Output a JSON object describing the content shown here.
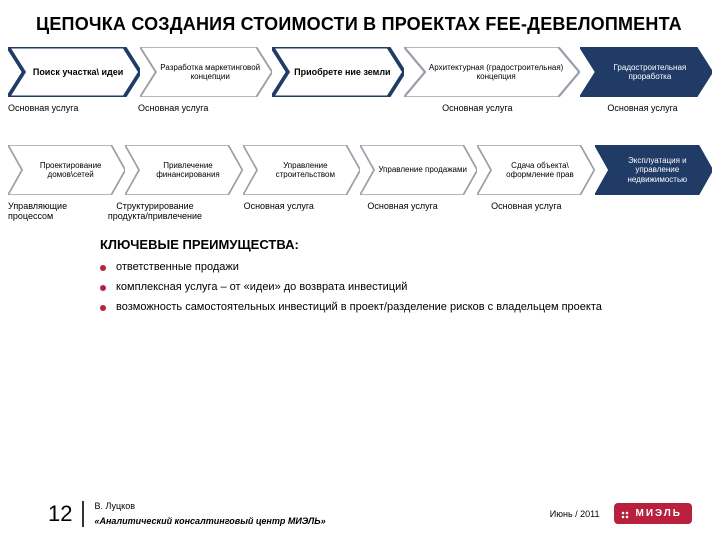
{
  "title": "ЦЕПОЧКА СОЗДАНИЯ СТОИМОСТИ В ПРОЕКТАХ FEE-ДЕВЕЛОПМЕНТА",
  "colors": {
    "navy": "#1f3b66",
    "grayStroke": "#9aa0a8",
    "logoBg": "#b9203d"
  },
  "row1": [
    {
      "label": "Поиск участка\\ идеи",
      "sub": "Основная услуга",
      "bold": true,
      "fill": "#ffffff",
      "stroke": "#1f3b66",
      "textWhite": false
    },
    {
      "label": "Разработка маркетинговой концепции",
      "sub": "Основная услуга",
      "bold": false,
      "fill": "#ffffff",
      "stroke": "#9aa0a8",
      "textWhite": false
    },
    {
      "label": "Приобрете ние земли",
      "sub": "",
      "bold": true,
      "fill": "#ffffff",
      "stroke": "#1f3b66",
      "textWhite": false
    },
    {
      "label": "Архитектурная (градостроительная) концепция",
      "sub": "Основная услуга",
      "bold": false,
      "fill": "#ffffff",
      "stroke": "#9aa0a8",
      "textWhite": false,
      "wide": true
    },
    {
      "label": "Градостроительная проработка",
      "sub": "Основная услуга",
      "bold": false,
      "fill": "#1f3b66",
      "stroke": "#1f3b66",
      "textWhite": true
    }
  ],
  "row2": [
    {
      "label": "Проектирование домов\\сетей",
      "sub": "Управляющие процессом",
      "bold": false,
      "fill": "#ffffff",
      "stroke": "#9aa0a8",
      "textWhite": false
    },
    {
      "label": "Привлечение финансирования",
      "sub": "Структурирование продукта/привлечение",
      "bold": false,
      "fill": "#ffffff",
      "stroke": "#9aa0a8",
      "textWhite": false
    },
    {
      "label": "Управление строительством",
      "sub": "Основная услуга",
      "bold": false,
      "fill": "#ffffff",
      "stroke": "#9aa0a8",
      "textWhite": false
    },
    {
      "label": "Управление продажами",
      "sub": "Основная услуга",
      "bold": false,
      "fill": "#ffffff",
      "stroke": "#9aa0a8",
      "textWhite": false
    },
    {
      "label": "Сдача объекта\\ оформление прав",
      "sub": "Основная услуга",
      "bold": false,
      "fill": "#ffffff",
      "stroke": "#9aa0a8",
      "textWhite": false
    },
    {
      "label": "Эксплуатация и управление недвижимостью",
      "sub": "",
      "bold": false,
      "fill": "#1f3b66",
      "stroke": "#1f3b66",
      "textWhite": true
    }
  ],
  "advantages": {
    "title": "КЛЮЧЕВЫЕ ПРЕИМУЩЕСТВА:",
    "items": [
      "ответственные продажи",
      "комплексная услуга – от «идеи» до возврата инвестиций",
      "возможность самостоятельных инвестиций в проект/разделение рисков с владельцем проекта"
    ]
  },
  "footer": {
    "page": "12",
    "author": "В. Луцков",
    "company": "«Аналитический консалтинговый центр МИЭЛЬ»",
    "date": "Июнь / 2011",
    "logo": "МИЭЛЬ"
  }
}
